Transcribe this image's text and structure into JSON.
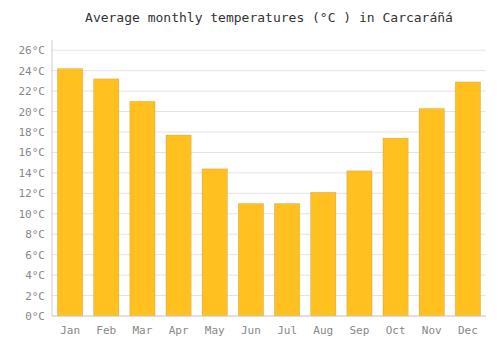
{
  "chart_data": {
    "type": "bar",
    "title": "Average monthly temperatures (°C ) in Carcaráñá",
    "categories": [
      "Jan",
      "Feb",
      "Mar",
      "Apr",
      "May",
      "Jun",
      "Jul",
      "Aug",
      "Sep",
      "Oct",
      "Nov",
      "Dec"
    ],
    "values": [
      24.2,
      23.2,
      21.0,
      17.7,
      14.4,
      11.0,
      11.0,
      12.1,
      14.2,
      17.4,
      20.3,
      22.9
    ],
    "color": "#FFC020",
    "ylim": [
      0,
      27
    ],
    "yticks": [
      {
        "value": 0,
        "label": "0°C"
      },
      {
        "value": 2,
        "label": "2°C"
      },
      {
        "value": 4,
        "label": "4°C"
      },
      {
        "value": 6,
        "label": "6°C"
      },
      {
        "value": 8,
        "label": "8°C"
      },
      {
        "value": 10,
        "label": "10°C"
      },
      {
        "value": 12,
        "label": "12°C"
      },
      {
        "value": 14,
        "label": "14°C"
      },
      {
        "value": 16,
        "label": "16°C"
      },
      {
        "value": 18,
        "label": "18°C"
      },
      {
        "value": 20,
        "label": "20°C"
      },
      {
        "value": 22,
        "label": "22°C"
      },
      {
        "value": 24,
        "label": "24°C"
      },
      {
        "value": 26,
        "label": "26°C"
      }
    ],
    "grid": true
  }
}
